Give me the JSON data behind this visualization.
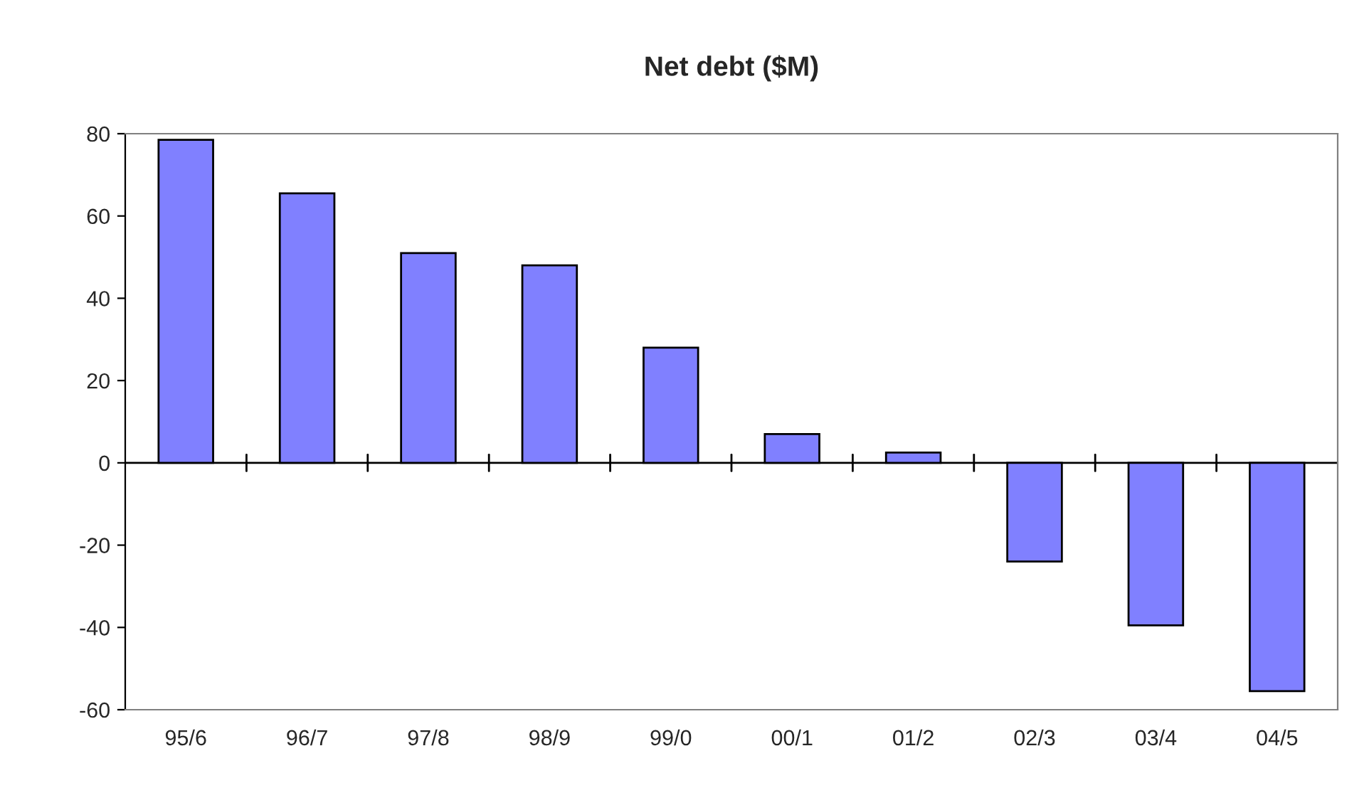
{
  "chart_data": {
    "type": "bar",
    "title": "Net debt ($M)",
    "categories": [
      "95/6",
      "96/7",
      "97/8",
      "98/9",
      "99/0",
      "00/1",
      "01/2",
      "02/3",
      "03/4",
      "04/5"
    ],
    "values": [
      78.5,
      65.5,
      51,
      48,
      28,
      7,
      2.5,
      -24,
      -39.5,
      -55.5
    ],
    "color": "#8080ff",
    "ylim": [
      -60,
      80
    ],
    "yticks": [
      -60,
      -40,
      -20,
      0,
      20,
      40,
      60,
      80
    ],
    "ref_lines": [
      {
        "axis": "y",
        "value": 0,
        "color": "#000000"
      }
    ],
    "grid": false,
    "legend": false
  }
}
